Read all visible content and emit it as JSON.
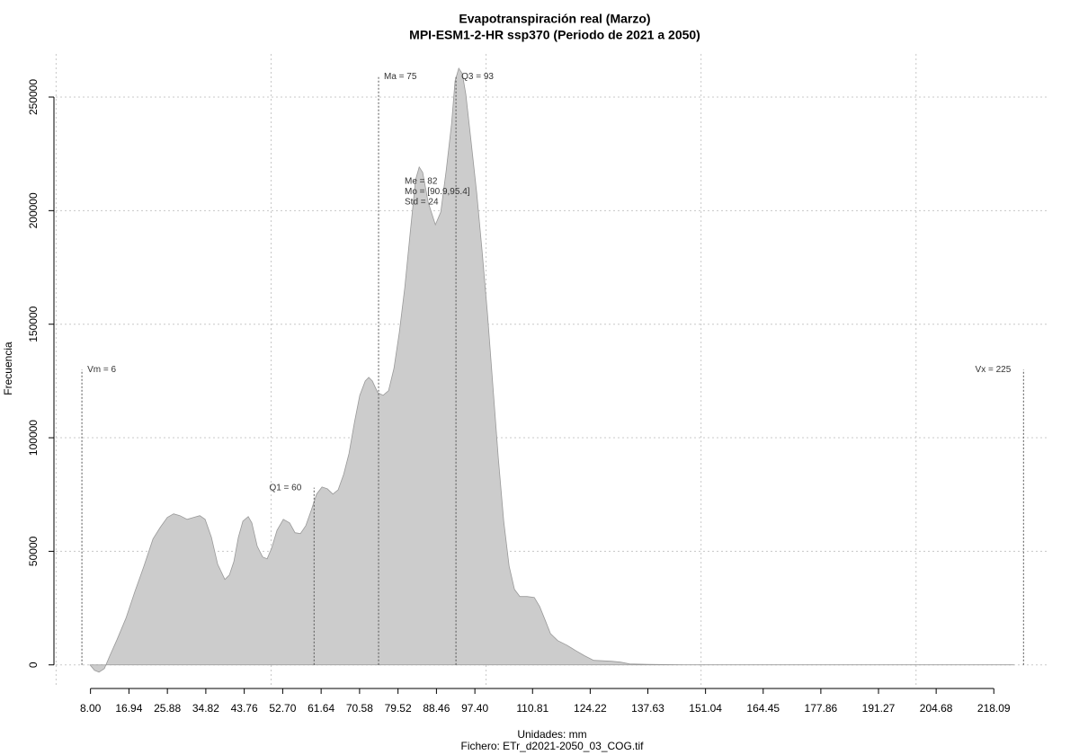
{
  "chart_data": {
    "type": "area",
    "title": "Evapotranspiración real (Marzo)",
    "subtitle": "MPI-ESM1-2-HR ssp370 (Periodo de 2021 a 2050)",
    "x_label": "Unidades: mm",
    "file_label": "Fichero: ETr_d2021-2050_03_COG.tif",
    "y_label": "Frecuencia",
    "color": "#cccccc",
    "line_color": "#999999",
    "xlim": [
      -0.5,
      231
    ],
    "ylim": [
      -10000,
      269000
    ],
    "xticks": [
      {
        "value": 8,
        "label": "8.00"
      },
      16.94,
      25.88,
      34.82,
      43.76,
      {
        "value": 52.7,
        "label": "52.70"
      },
      61.64,
      70.58,
      79.52,
      88.46,
      {
        "value": 97.4,
        "label": "97.40"
      },
      110.81,
      124.22,
      137.63,
      151.04,
      164.45,
      177.86,
      191.27,
      204.68,
      218.09
    ],
    "yticks": [
      0,
      50000,
      100000,
      150000,
      200000,
      250000
    ],
    "xgrid": [
      0,
      50,
      100,
      150,
      200
    ],
    "grid": true,
    "x": [
      7.88,
      8.93,
      9.97,
      11.23,
      12.48,
      14.16,
      16.25,
      18.34,
      20.43,
      22.53,
      24.2,
      25.87,
      27.34,
      28.8,
      30.48,
      31.94,
      33.41,
      34.66,
      36.12,
      37.59,
      39.26,
      40.3,
      41.35,
      42.4,
      43.44,
      44.7,
      45.53,
      46.79,
      48.04,
      49.09,
      50.13,
      51.39,
      52.85,
      54.32,
      55.57,
      56.83,
      58.08,
      59.34,
      60.59,
      61.85,
      63.1,
      64.36,
      65.61,
      66.87,
      68.12,
      69.38,
      70.63,
      71.89,
      72.72,
      73.56,
      74.81,
      76.07,
      77.32,
      78.58,
      79.83,
      81.09,
      82.34,
      83.6,
      84.44,
      85.27,
      86.53,
      88.2,
      89.46,
      90.71,
      91.97,
      92.8,
      93.64,
      94.48,
      95.31,
      96.57,
      97.82,
      99.08,
      100.33,
      101.59,
      102.84,
      104.1,
      105.35,
      106.61,
      107.86,
      109.53,
      111.21,
      112.46,
      113.72,
      114.97,
      116.65,
      118.74,
      120.83,
      122.92,
      125.02,
      129.2,
      131.29,
      133.38,
      137.57,
      145.93,
      222.7
    ],
    "values": [
      0,
      -2400,
      -3200,
      -1600,
      4000,
      11100,
      20600,
      32400,
      43500,
      55400,
      60500,
      64900,
      66500,
      65700,
      64100,
      64900,
      65700,
      64100,
      56200,
      44300,
      37600,
      39600,
      45500,
      56200,
      63300,
      65300,
      62500,
      52200,
      47500,
      46700,
      51400,
      59300,
      64100,
      62500,
      58200,
      57800,
      61300,
      68000,
      75200,
      78300,
      77500,
      75200,
      77100,
      83900,
      93000,
      106800,
      118700,
      125000,
      126600,
      125000,
      119900,
      118700,
      120700,
      130500,
      146400,
      166200,
      189900,
      213600,
      219200,
      216800,
      203700,
      193800,
      199400,
      217600,
      238200,
      257100,
      262700,
      260300,
      251200,
      229400,
      207700,
      182000,
      154300,
      122600,
      91000,
      63300,
      43500,
      33200,
      30100,
      30100,
      29700,
      25700,
      19800,
      13800,
      10700,
      8700,
      6300,
      4000,
      2000,
      1600,
      1200,
      400,
      200,
      0,
      0
    ],
    "markers": [
      {
        "label": "Vm = 6",
        "x": 6,
        "top": 130000
      },
      {
        "label": "Q1 = 60",
        "x": 60,
        "top": 78000
      },
      {
        "label": "Ma = 75",
        "x": 75,
        "top": 259000
      },
      {
        "label": "Q3 = 93",
        "x": 93,
        "top": 259000
      },
      {
        "label": "Vx = 225",
        "x": 225,
        "top": 130000
      }
    ],
    "stats": [
      "Me = 82",
      "Mo = [90.9,95.4]",
      "Std = 24"
    ]
  }
}
